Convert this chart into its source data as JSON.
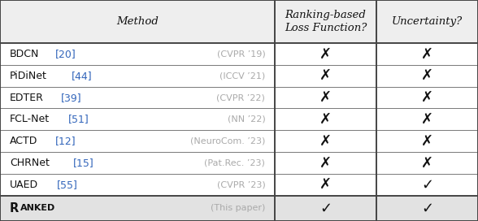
{
  "figsize": [
    5.88,
    2.72
  ],
  "dpi": 100,
  "header": [
    "Method",
    "Ranking-based\nLoss Function?",
    "Uncertainty?"
  ],
  "rows": [
    {
      "method_main": "BDCN",
      "method_ref": "[20]",
      "method_venue": "(CVPR ’19)",
      "ranking": false,
      "uncertainty": false
    },
    {
      "method_main": "PiDiNet",
      "method_ref": "[44]",
      "method_venue": "(ICCV ’21)",
      "ranking": false,
      "uncertainty": false
    },
    {
      "method_main": "EDTER",
      "method_ref": "[39]",
      "method_venue": "(CVPR ’22)",
      "ranking": false,
      "uncertainty": false
    },
    {
      "method_main": "FCL-Net",
      "method_ref": "[51]",
      "method_venue": "(NN ’22)",
      "ranking": false,
      "uncertainty": false
    },
    {
      "method_main": "ACTD",
      "method_ref": "[12]",
      "method_venue": "(NeuroCom. ’23)",
      "ranking": false,
      "uncertainty": false
    },
    {
      "method_main": "CHRNet",
      "method_ref": "[15]",
      "method_venue": "(Pat.Rec. ’23)",
      "ranking": false,
      "uncertainty": false
    },
    {
      "method_main": "UAED",
      "method_ref": "[55]",
      "method_venue": "(CVPR ’23)",
      "ranking": false,
      "uncertainty": true
    }
  ],
  "last_row": {
    "method_main": "RANKED",
    "method_venue": "(This paper)",
    "ranking": true,
    "uncertainty": true
  },
  "col_split1": 0.575,
  "col_split2": 0.787,
  "header_bg": "#eeeeee",
  "last_row_bg": "#e2e2e2",
  "white_bg": "#ffffff",
  "text_color_main": "#111111",
  "text_color_ref": "#3366BB",
  "text_color_venue": "#aaaaaa",
  "border_color": "#444444",
  "font_size_header": 9.5,
  "font_size_body": 9.0,
  "font_size_venue": 8.0,
  "font_size_symbol": 13
}
